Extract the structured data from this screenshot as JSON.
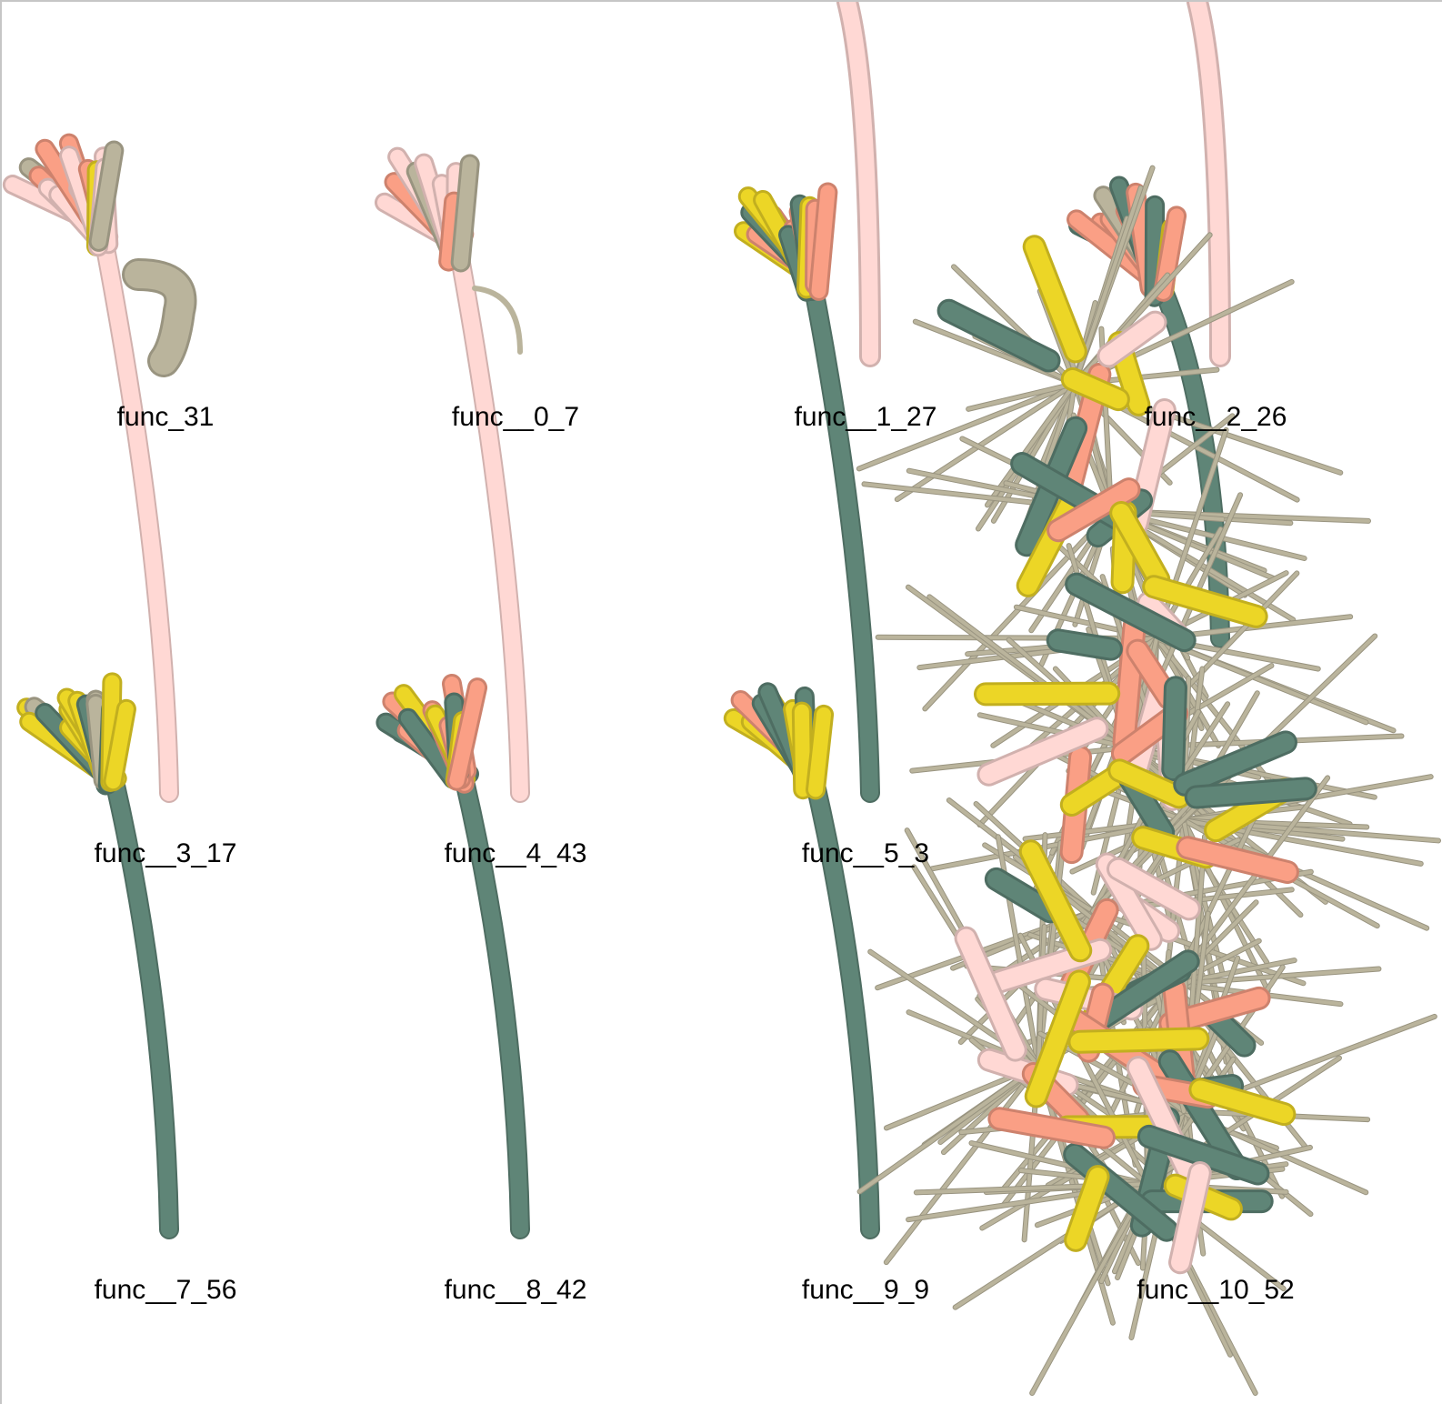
{
  "palette": {
    "green": "#5f8577",
    "pink": "#ffd8d4",
    "pink_edge": "#f0b8b0",
    "salmon": "#fa9f85",
    "yellow": "#ecd626",
    "gray": "#bab49c",
    "background": "#ffffff",
    "border": "#c6c6c6"
  },
  "functions": [
    {
      "id": "func_31",
      "label": "func_31",
      "color": "pink"
    },
    {
      "id": "func__0_7",
      "label": "func__0_7",
      "color": "pink"
    },
    {
      "id": "func__1_27",
      "label": "func__1_27",
      "color": "green"
    },
    {
      "id": "func__2_26",
      "label": "func__2_26",
      "color": "green"
    },
    {
      "id": "func__3_17",
      "label": "func__3_17",
      "color": "green"
    },
    {
      "id": "func__4_43",
      "label": "func__4_43",
      "color": "green"
    },
    {
      "id": "func__5_3",
      "label": "func__5_3",
      "color": "green"
    },
    {
      "id": "func__6",
      "label": "",
      "color": "yellow"
    },
    {
      "id": "func__7_56",
      "label": "func__7_56",
      "color": "green"
    },
    {
      "id": "func__8_42",
      "label": "func__8_42",
      "color": "green"
    },
    {
      "id": "func__9_9",
      "label": "func__9_9",
      "color": "green"
    },
    {
      "id": "func__10_52",
      "label": "func__10_52",
      "color": "gray"
    }
  ]
}
